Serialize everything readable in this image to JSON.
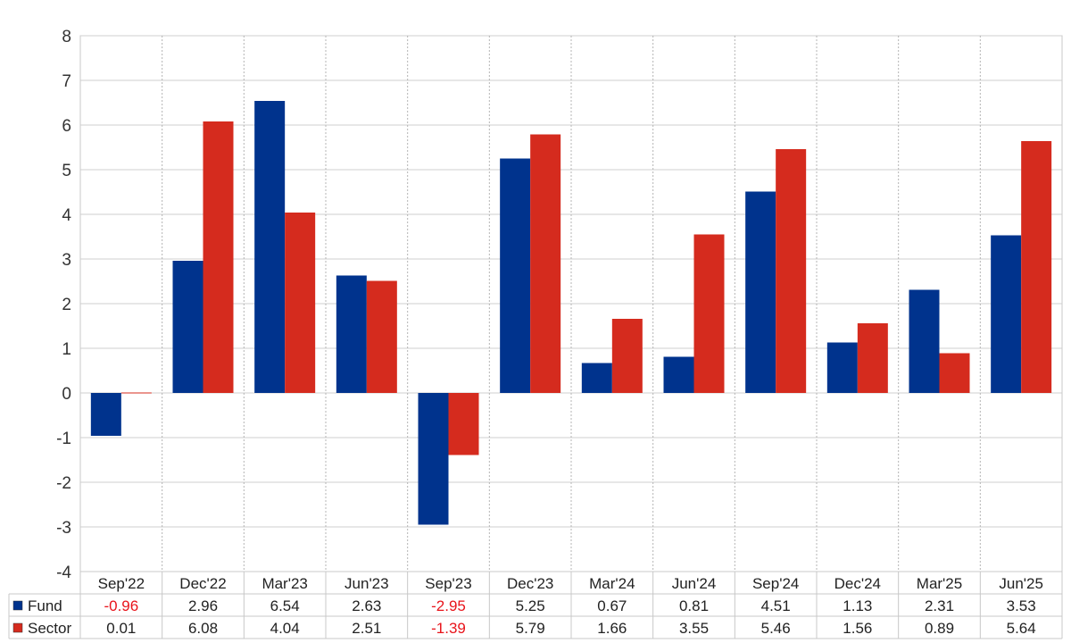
{
  "chart_data": {
    "type": "bar",
    "categories": [
      "Sep'22",
      "Dec'22",
      "Mar'23",
      "Jun'23",
      "Sep'23",
      "Dec'23",
      "Mar'24",
      "Jun'24",
      "Sep'24",
      "Dec'24",
      "Mar'25",
      "Jun'25"
    ],
    "series": [
      {
        "name": "Fund",
        "color": "#00338d",
        "values": [
          -0.96,
          2.96,
          6.54,
          2.63,
          -2.95,
          5.25,
          0.67,
          0.81,
          4.51,
          1.13,
          2.31,
          3.53
        ],
        "labels": [
          "-0.96",
          "2.96",
          "6.54",
          "2.63",
          "-2.95",
          "5.25",
          "0.67",
          "0.81",
          "4.51",
          "1.13",
          "2.31",
          "3.53"
        ]
      },
      {
        "name": "Sector",
        "color": "#d52b1e",
        "values": [
          0.01,
          6.08,
          4.04,
          2.51,
          -1.39,
          5.79,
          1.66,
          3.55,
          5.46,
          1.56,
          0.89,
          5.64
        ],
        "labels": [
          "0.01",
          "6.08",
          "4.04",
          "2.51",
          "-1.39",
          "5.79",
          "1.66",
          "3.55",
          "5.46",
          "1.56",
          "0.89",
          "5.64"
        ]
      }
    ],
    "yticks": [
      "8",
      "7",
      "6",
      "5",
      "4",
      "3",
      "2",
      "1",
      "0",
      "-1",
      "-2",
      "-3",
      "-4"
    ],
    "ylim": [
      -4,
      8
    ],
    "grid": true,
    "legend": "table-below",
    "negative_color": "#e8141b"
  }
}
